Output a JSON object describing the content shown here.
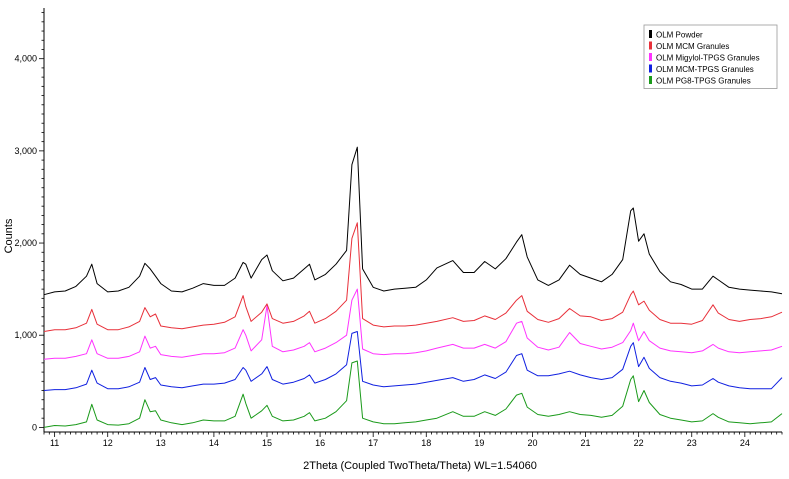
{
  "chart_data": {
    "type": "line",
    "xlabel": "2Theta (Coupled TwoTheta/Theta) WL=1.54060",
    "ylabel": "Counts",
    "xlim": [
      10.8,
      24.7
    ],
    "ylim": [
      -50,
      4550
    ],
    "x_ticks": [
      "11",
      "12",
      "13",
      "14",
      "15",
      "16",
      "17",
      "18",
      "19",
      "20",
      "21",
      "22",
      "23",
      "24"
    ],
    "x_tick_values": [
      11,
      12,
      13,
      14,
      15,
      16,
      17,
      18,
      19,
      20,
      21,
      22,
      23,
      24
    ],
    "y_ticks": [
      "0",
      "1,000",
      "2,000",
      "3,000",
      "4,000"
    ],
    "y_tick_values": [
      0,
      1000,
      2000,
      3000,
      4000
    ],
    "grid": false,
    "legend_position": "top-right",
    "x": [
      10.8,
      11.0,
      11.2,
      11.4,
      11.6,
      11.7,
      11.8,
      12.0,
      12.2,
      12.4,
      12.6,
      12.7,
      12.8,
      12.9,
      13.0,
      13.2,
      13.4,
      13.6,
      13.8,
      14.0,
      14.2,
      14.4,
      14.55,
      14.6,
      14.7,
      14.9,
      15.0,
      15.1,
      15.3,
      15.5,
      15.7,
      15.8,
      15.9,
      16.1,
      16.3,
      16.5,
      16.6,
      16.7,
      16.8,
      17.0,
      17.2,
      17.4,
      17.6,
      17.8,
      18.0,
      18.2,
      18.5,
      18.7,
      18.9,
      19.1,
      19.3,
      19.5,
      19.7,
      19.8,
      19.9,
      20.1,
      20.3,
      20.5,
      20.7,
      20.9,
      21.1,
      21.3,
      21.5,
      21.7,
      21.85,
      21.9,
      22.0,
      22.1,
      22.2,
      22.4,
      22.6,
      22.8,
      23.0,
      23.2,
      23.4,
      23.5,
      23.7,
      23.9,
      24.1,
      24.3,
      24.5,
      24.7
    ],
    "series": [
      {
        "name": "OLM Powder",
        "color": "#000000",
        "values": [
          1440,
          1470,
          1480,
          1530,
          1640,
          1770,
          1560,
          1470,
          1480,
          1520,
          1640,
          1780,
          1720,
          1640,
          1560,
          1480,
          1470,
          1510,
          1560,
          1540,
          1540,
          1620,
          1790,
          1770,
          1620,
          1820,
          1870,
          1700,
          1590,
          1620,
          1720,
          1770,
          1600,
          1660,
          1770,
          1920,
          2850,
          3040,
          1720,
          1520,
          1480,
          1500,
          1510,
          1520,
          1600,
          1730,
          1810,
          1680,
          1680,
          1800,
          1720,
          1830,
          2010,
          2090,
          1850,
          1600,
          1540,
          1600,
          1760,
          1660,
          1620,
          1580,
          1660,
          1820,
          2350,
          2380,
          2020,
          2100,
          1880,
          1690,
          1580,
          1550,
          1500,
          1500,
          1640,
          1600,
          1520,
          1500,
          1490,
          1480,
          1470,
          1450
        ]
      },
      {
        "name": "OLM MCM Granules",
        "color": "#e8303a",
        "values": [
          1040,
          1060,
          1060,
          1080,
          1130,
          1280,
          1120,
          1060,
          1060,
          1090,
          1150,
          1300,
          1200,
          1230,
          1100,
          1080,
          1070,
          1090,
          1110,
          1120,
          1140,
          1200,
          1430,
          1310,
          1150,
          1250,
          1340,
          1180,
          1130,
          1150,
          1210,
          1260,
          1130,
          1180,
          1260,
          1380,
          2050,
          2220,
          1180,
          1110,
          1090,
          1100,
          1100,
          1110,
          1130,
          1150,
          1190,
          1150,
          1160,
          1210,
          1170,
          1240,
          1380,
          1430,
          1260,
          1170,
          1140,
          1180,
          1290,
          1210,
          1200,
          1160,
          1180,
          1250,
          1440,
          1480,
          1330,
          1370,
          1270,
          1170,
          1130,
          1130,
          1120,
          1160,
          1330,
          1240,
          1170,
          1150,
          1170,
          1180,
          1200,
          1250
        ]
      },
      {
        "name": "OLM Migylol-TPGS Granules",
        "color": "#ff33ff",
        "values": [
          740,
          750,
          750,
          770,
          800,
          950,
          800,
          750,
          750,
          770,
          820,
          990,
          860,
          880,
          790,
          770,
          760,
          780,
          800,
          800,
          810,
          860,
          1060,
          1000,
          830,
          950,
          1320,
          880,
          820,
          840,
          880,
          920,
          820,
          860,
          920,
          1000,
          1380,
          1500,
          850,
          800,
          790,
          800,
          800,
          810,
          830,
          860,
          900,
          860,
          860,
          900,
          860,
          930,
          1130,
          1150,
          970,
          870,
          840,
          870,
          1030,
          910,
          880,
          850,
          870,
          920,
          1050,
          1130,
          940,
          1040,
          940,
          860,
          830,
          820,
          810,
          830,
          900,
          860,
          820,
          810,
          820,
          830,
          840,
          880
        ]
      },
      {
        "name": "OLM MCM-TPGS Granules",
        "color": "#1020e0",
        "values": [
          400,
          410,
          410,
          430,
          470,
          620,
          480,
          420,
          420,
          440,
          490,
          650,
          520,
          540,
          460,
          440,
          430,
          450,
          470,
          470,
          480,
          520,
          650,
          620,
          500,
          580,
          660,
          520,
          470,
          490,
          530,
          570,
          480,
          520,
          580,
          680,
          1020,
          1040,
          500,
          460,
          440,
          450,
          460,
          470,
          490,
          510,
          540,
          500,
          520,
          570,
          530,
          600,
          780,
          800,
          620,
          560,
          560,
          580,
          610,
          570,
          540,
          520,
          540,
          630,
          880,
          920,
          660,
          760,
          640,
          540,
          500,
          480,
          450,
          460,
          530,
          490,
          450,
          430,
          420,
          420,
          420,
          540
        ]
      },
      {
        "name": "OLM PG8-TPGS Granules",
        "color": "#1a9a1a",
        "values": [
          0,
          20,
          15,
          30,
          60,
          250,
          80,
          30,
          25,
          40,
          100,
          300,
          170,
          180,
          80,
          50,
          30,
          50,
          80,
          70,
          70,
          120,
          360,
          260,
          100,
          180,
          240,
          120,
          70,
          80,
          120,
          160,
          70,
          100,
          170,
          290,
          700,
          720,
          100,
          60,
          40,
          40,
          50,
          60,
          80,
          100,
          170,
          120,
          120,
          170,
          130,
          200,
          350,
          370,
          220,
          140,
          120,
          140,
          170,
          140,
          130,
          110,
          130,
          230,
          520,
          560,
          280,
          400,
          270,
          140,
          100,
          80,
          60,
          70,
          150,
          110,
          60,
          50,
          40,
          50,
          60,
          150
        ]
      }
    ]
  }
}
